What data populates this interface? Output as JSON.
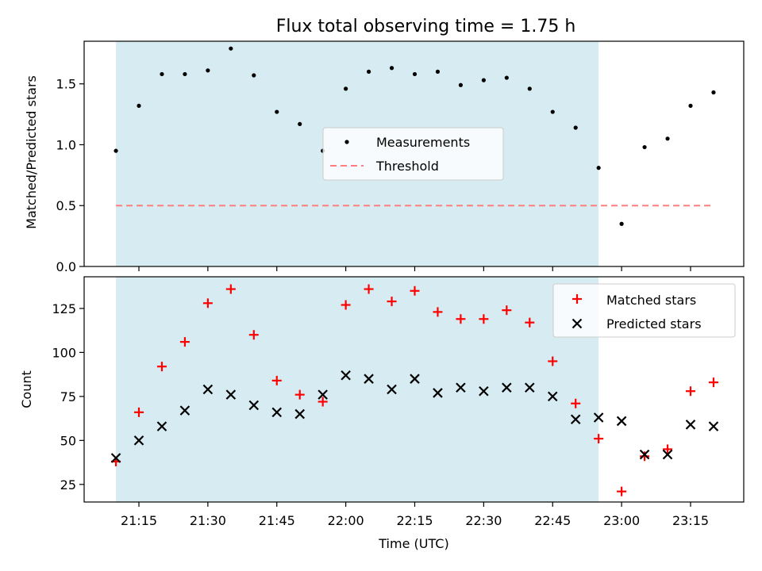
{
  "chart_data": [
    {
      "type": "scatter",
      "title": "Flux total observing time = 1.75 h",
      "xlabel": "",
      "ylabel": "Matched/Predicted stars",
      "ylim": [
        0.0,
        1.85
      ],
      "yticks": [
        "0.0",
        "0.5",
        "1.0",
        "1.5"
      ],
      "shaded_span": {
        "start": "21:10",
        "end": "22:55",
        "color": "#add8e6"
      },
      "legend_position": "center",
      "series": [
        {
          "name": "Measurements",
          "marker": "dot",
          "color": "#000000",
          "x": [
            "21:10",
            "21:15",
            "21:20",
            "21:25",
            "21:30",
            "21:35",
            "21:40",
            "21:45",
            "21:50",
            "21:55",
            "22:00",
            "22:05",
            "22:10",
            "22:15",
            "22:20",
            "22:25",
            "22:30",
            "22:35",
            "22:40",
            "22:45",
            "22:50",
            "22:55",
            "23:00",
            "23:05",
            "23:10",
            "23:15",
            "23:20"
          ],
          "values": [
            0.95,
            1.32,
            1.58,
            1.58,
            1.61,
            1.79,
            1.57,
            1.27,
            1.17,
            0.95,
            1.46,
            1.6,
            1.63,
            1.58,
            1.6,
            1.49,
            1.53,
            1.55,
            1.46,
            1.27,
            1.14,
            0.81,
            0.35,
            0.98,
            1.05,
            1.32,
            1.43
          ]
        },
        {
          "name": "Threshold",
          "marker": "dashed-line",
          "color": "#ff7f7f",
          "x": [
            "21:10",
            "23:20"
          ],
          "values": [
            0.5,
            0.5
          ]
        }
      ]
    },
    {
      "type": "scatter",
      "title": "",
      "xlabel": "Time (UTC)",
      "ylabel": "Count",
      "ylim": [
        15,
        143
      ],
      "yticks": [
        "25",
        "50",
        "75",
        "100",
        "125"
      ],
      "xticks": [
        "21:15",
        "21:30",
        "21:45",
        "22:00",
        "22:15",
        "22:30",
        "22:45",
        "23:00",
        "23:15"
      ],
      "shaded_span": {
        "start": "21:10",
        "end": "22:55",
        "color": "#add8e6"
      },
      "legend_position": "top-right",
      "series": [
        {
          "name": "Matched stars",
          "marker": "plus",
          "color": "#ff0000",
          "x": [
            "21:10",
            "21:15",
            "21:20",
            "21:25",
            "21:30",
            "21:35",
            "21:40",
            "21:45",
            "21:50",
            "21:55",
            "22:00",
            "22:05",
            "22:10",
            "22:15",
            "22:20",
            "22:25",
            "22:30",
            "22:35",
            "22:40",
            "22:45",
            "22:50",
            "22:55",
            "23:00",
            "23:05",
            "23:10",
            "23:15",
            "23:20"
          ],
          "values": [
            38,
            66,
            92,
            106,
            128,
            136,
            110,
            84,
            76,
            72,
            127,
            136,
            129,
            135,
            123,
            119,
            119,
            124,
            117,
            95,
            71,
            51,
            21,
            41,
            45,
            78,
            83
          ]
        },
        {
          "name": "Predicted stars",
          "marker": "x",
          "color": "#000000",
          "x": [
            "21:10",
            "21:15",
            "21:20",
            "21:25",
            "21:30",
            "21:35",
            "21:40",
            "21:45",
            "21:50",
            "21:55",
            "22:00",
            "22:05",
            "22:10",
            "22:15",
            "22:20",
            "22:25",
            "22:30",
            "22:35",
            "22:40",
            "22:45",
            "22:50",
            "22:55",
            "23:00",
            "23:05",
            "23:10",
            "23:15",
            "23:20"
          ],
          "values": [
            40,
            50,
            58,
            67,
            79,
            76,
            70,
            66,
            65,
            76,
            87,
            85,
            79,
            85,
            77,
            80,
            78,
            80,
            80,
            75,
            62,
            63,
            61,
            42,
            42,
            59,
            58
          ]
        }
      ]
    }
  ]
}
